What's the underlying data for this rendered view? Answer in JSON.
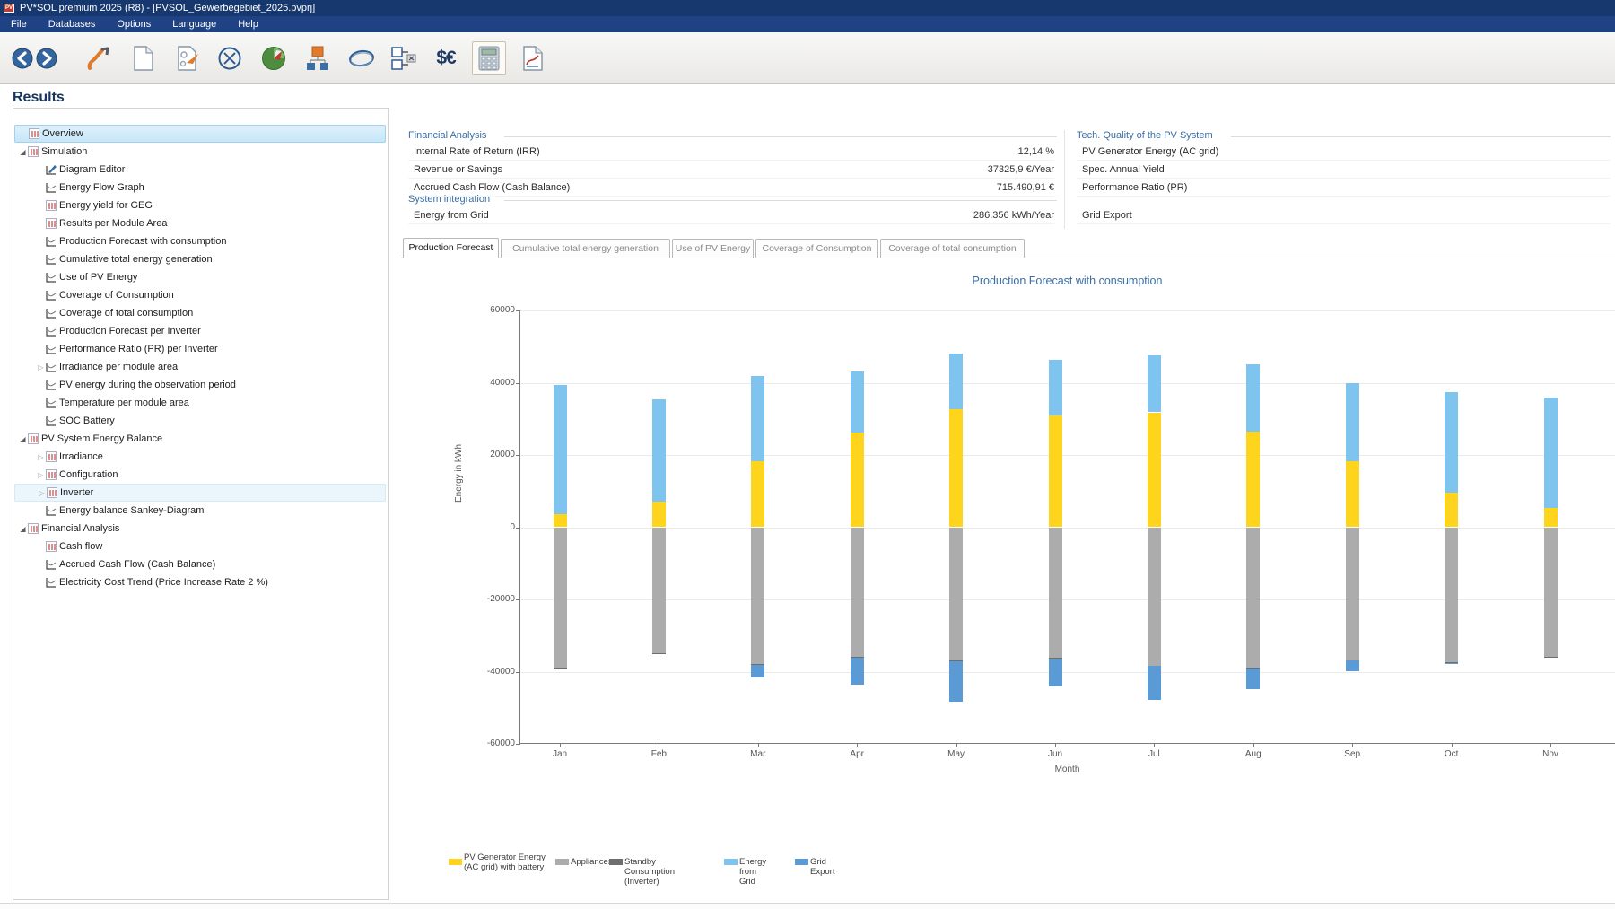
{
  "window": {
    "title": "PV*SOL premium 2025 (R8) - [PVSOL_Gewerbegebiet_2025.pvprj]",
    "app_icon": "pv-logo"
  },
  "menu": {
    "items": [
      "File",
      "Databases",
      "Options",
      "Language",
      "Help"
    ]
  },
  "toolbar": {
    "currency_label": "$€",
    "buttons": [
      "back",
      "forward",
      "project-assistant",
      "new-project",
      "open-project",
      "close-project",
      "3d-planning",
      "system-diagram",
      "cable-plan",
      "compare-variants",
      "financial-analysis",
      "results-calculation",
      "report"
    ]
  },
  "page": {
    "title": "Results"
  },
  "tree": {
    "items": [
      {
        "label": "Overview",
        "level": 0,
        "expander": "none",
        "icon": "table",
        "state": "selected"
      },
      {
        "label": "Simulation",
        "level": 0,
        "expander": "expanded",
        "icon": "table",
        "state": "normal"
      },
      {
        "label": "Diagram Editor",
        "level": 1,
        "expander": "none",
        "icon": "editor",
        "state": "normal"
      },
      {
        "label": "Energy Flow Graph",
        "level": 1,
        "expander": "none",
        "icon": "line",
        "state": "normal"
      },
      {
        "label": "Energy yield for GEG",
        "level": 1,
        "expander": "none",
        "icon": "table",
        "state": "normal"
      },
      {
        "label": "Results per Module Area",
        "level": 1,
        "expander": "none",
        "icon": "table",
        "state": "normal"
      },
      {
        "label": "Production Forecast with consumption",
        "level": 1,
        "expander": "none",
        "icon": "line",
        "state": "normal"
      },
      {
        "label": "Cumulative total energy generation",
        "level": 1,
        "expander": "none",
        "icon": "line",
        "state": "normal"
      },
      {
        "label": "Use of PV Energy",
        "level": 1,
        "expander": "none",
        "icon": "line",
        "state": "normal"
      },
      {
        "label": "Coverage of Consumption",
        "level": 1,
        "expander": "none",
        "icon": "line",
        "state": "normal"
      },
      {
        "label": "Coverage of total consumption",
        "level": 1,
        "expander": "none",
        "icon": "line",
        "state": "normal"
      },
      {
        "label": "Production Forecast per Inverter",
        "level": 1,
        "expander": "none",
        "icon": "line",
        "state": "normal"
      },
      {
        "label": "Performance Ratio (PR) per Inverter",
        "level": 1,
        "expander": "none",
        "icon": "line",
        "state": "normal"
      },
      {
        "label": "Irradiance per module area",
        "level": 1,
        "expander": "collapsed",
        "icon": "line",
        "state": "normal"
      },
      {
        "label": "PV energy during the observation period",
        "level": 1,
        "expander": "none",
        "icon": "line",
        "state": "normal"
      },
      {
        "label": "Temperature per module area",
        "level": 1,
        "expander": "none",
        "icon": "line",
        "state": "normal"
      },
      {
        "label": "SOC Battery",
        "level": 1,
        "expander": "none",
        "icon": "line",
        "state": "normal"
      },
      {
        "label": "PV System Energy Balance",
        "level": 0,
        "expander": "expanded",
        "icon": "table",
        "state": "normal"
      },
      {
        "label": "Irradiance",
        "level": 1,
        "expander": "collapsed",
        "icon": "table",
        "state": "normal"
      },
      {
        "label": "Configuration",
        "level": 1,
        "expander": "collapsed",
        "icon": "table",
        "state": "normal"
      },
      {
        "label": "Inverter",
        "level": 1,
        "expander": "collapsed",
        "icon": "table",
        "state": "hover"
      },
      {
        "label": "Energy balance Sankey-Diagram",
        "level": 1,
        "expander": "none",
        "icon": "line",
        "state": "normal"
      },
      {
        "label": "Financial Analysis",
        "level": 0,
        "expander": "expanded",
        "icon": "table",
        "state": "normal"
      },
      {
        "label": "Cash flow",
        "level": 1,
        "expander": "none",
        "icon": "table",
        "state": "normal"
      },
      {
        "label": "Accrued Cash Flow (Cash Balance)",
        "level": 1,
        "expander": "none",
        "icon": "line",
        "state": "normal"
      },
      {
        "label": "Electricity Cost Trend (Price Increase Rate 2 %)",
        "level": 1,
        "expander": "none",
        "icon": "line",
        "state": "normal"
      }
    ]
  },
  "summary": {
    "financial": {
      "title": "Financial Analysis",
      "rows": [
        {
          "label": "Internal Rate of Return (IRR)",
          "value": "12,14 %"
        },
        {
          "label": "Revenue or Savings",
          "value": "37325,9 €/Year"
        },
        {
          "label": "Accrued Cash Flow (Cash Balance)",
          "value": "715.490,91 €"
        }
      ]
    },
    "system_integration": {
      "title": "System integration",
      "rows": [
        {
          "label": "Energy from Grid",
          "value": "286.356 kWh/Year"
        }
      ]
    },
    "tech_quality": {
      "title": "Tech. Quality of the PV System",
      "rows": [
        {
          "label": "PV Generator Energy (AC grid)"
        },
        {
          "label": "Spec. Annual Yield"
        },
        {
          "label": "Performance Ratio (PR)"
        },
        {
          "label": "Grid Export"
        }
      ]
    }
  },
  "tabs": {
    "active_index": 0,
    "items": [
      "Production Forecast",
      "Cumulative total energy generation",
      "Use of PV Energy",
      "Coverage of Consumption",
      "Coverage of total consumption"
    ]
  },
  "chart_data": {
    "type": "bar",
    "stacked": true,
    "title": "Production Forecast with consumption",
    "xlabel": "Month",
    "ylabel": "Energy in kWh",
    "ylim": [
      -60000,
      60000
    ],
    "ytick_step": 20000,
    "grid": true,
    "legend_position": "bottom",
    "categories": [
      "Jan",
      "Feb",
      "Mar",
      "Apr",
      "May",
      "Jun",
      "Jul",
      "Aug",
      "Sep",
      "Oct",
      "Nov"
    ],
    "series": [
      {
        "name": "PV Generator Energy (AC grid) with battery",
        "color": "#FFD41C",
        "values": [
          3500,
          7200,
          18300,
          26200,
          32700,
          31000,
          31800,
          26400,
          18200,
          9600,
          5300
        ]
      },
      {
        "name": "Energy from Grid",
        "color": "#7FC3EF",
        "values": [
          35800,
          28100,
          23500,
          17000,
          15400,
          15300,
          15900,
          18600,
          21700,
          27900,
          30500
        ]
      },
      {
        "name": "Appliances",
        "color": "#ACACAC",
        "values": [
          -38800,
          -35000,
          -38000,
          -36000,
          -37000,
          -36200,
          -38300,
          -38900,
          -36800,
          -37400,
          -36000
        ]
      },
      {
        "name": "Standby Consumption (Inverter)",
        "color": "#6E6E6E",
        "values": [
          -200,
          -200,
          -200,
          -200,
          -200,
          -200,
          -200,
          -200,
          -200,
          -200,
          -200
        ]
      },
      {
        "name": "Grid Export",
        "color": "#5B9BD5",
        "values": [
          0,
          0,
          -3300,
          -7400,
          -11200,
          -7600,
          -9300,
          -5800,
          -2900,
          -300,
          0
        ]
      }
    ],
    "legend": [
      {
        "label": "PV Generator Energy (AC grid) with battery",
        "color": "#FFD41C",
        "two_line": true
      },
      {
        "label": "Appliances",
        "color": "#ACACAC"
      },
      {
        "label": "Standby Consumption (Inverter)",
        "color": "#6E6E6E"
      },
      {
        "label": "Energy from Grid",
        "color": "#7FC3EF"
      },
      {
        "label": "Grid Export",
        "color": "#5B9BD5"
      }
    ]
  }
}
